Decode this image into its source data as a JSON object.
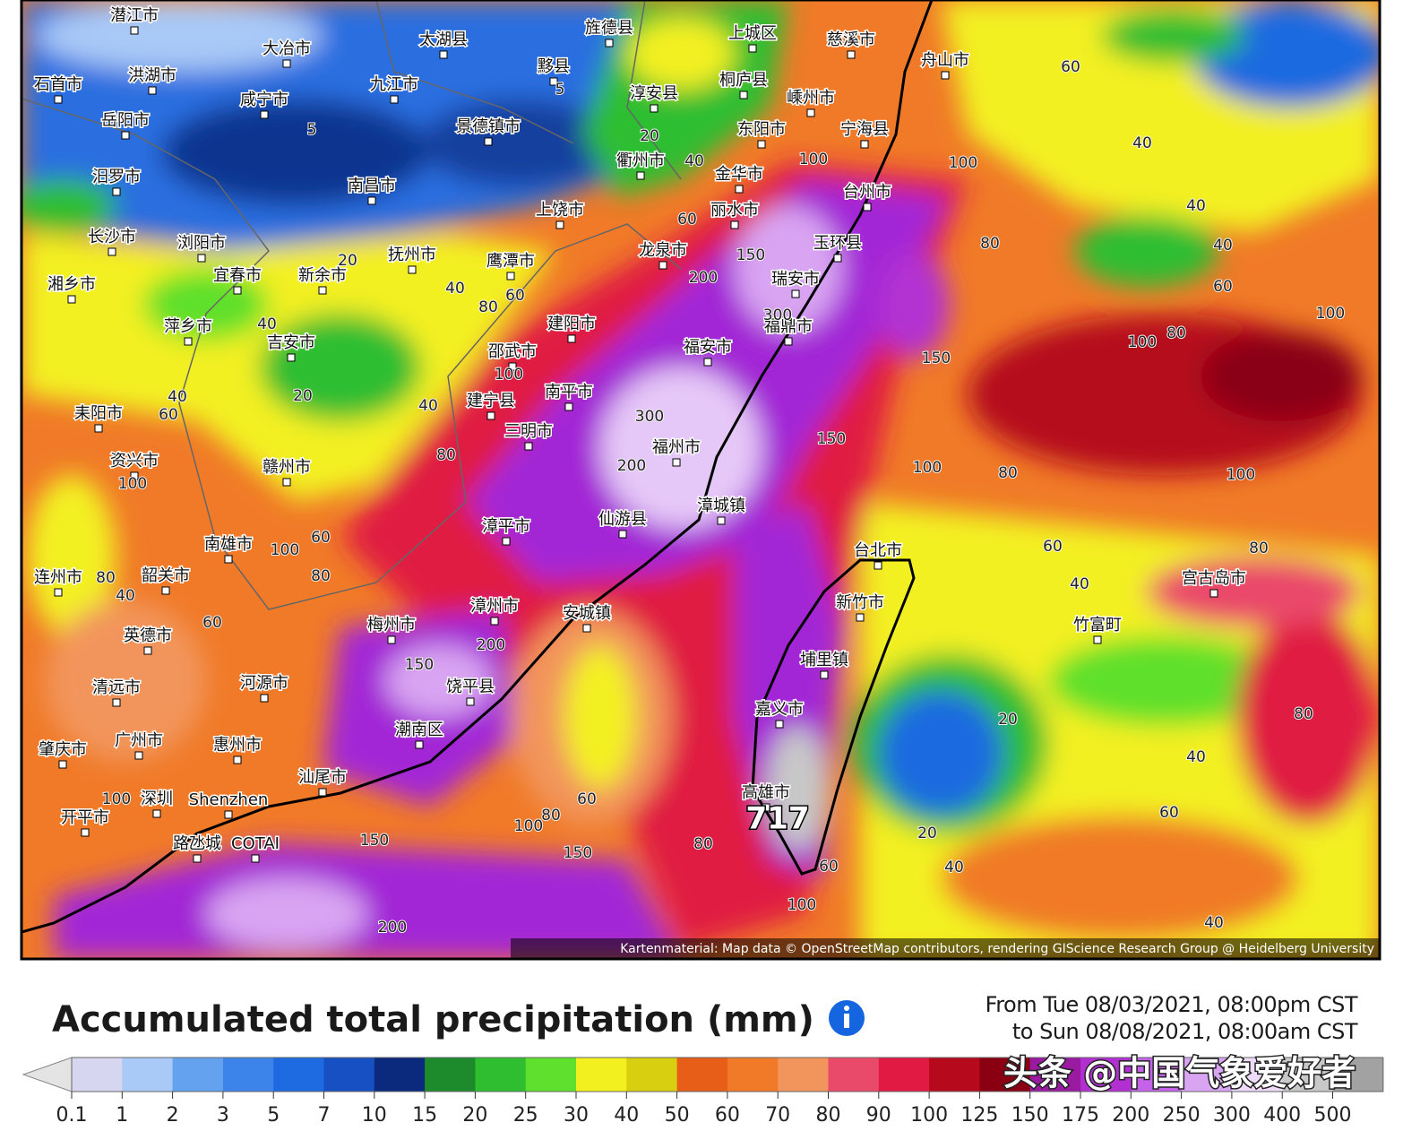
{
  "map": {
    "attribution": "Kartenmaterial: Map data © OpenStreetMap contributors, rendering GIScience Research Group @ Heidelberg University",
    "max_label": "717",
    "places": [
      "潜江市",
      "太湖县",
      "旌德县",
      "上城区",
      "慈溪市",
      "舟山市",
      "洪湖市",
      "大冶市",
      "黟县",
      "九江市",
      "桐庐县",
      "石首市",
      "咸宁市",
      "淳安县",
      "嵊州市",
      "岳阳市",
      "景德镇市",
      "东阳市",
      "宁海县",
      "衢州市",
      "金华市",
      "汨罗市",
      "南昌市",
      "台州市",
      "丽水市",
      "上饶市",
      "长沙市",
      "浏阳市",
      "玉环县",
      "龙泉市",
      "抚州市",
      "鹰潭市",
      "宜春市",
      "新余市",
      "瑞安市",
      "湘乡市",
      "建阳市",
      "萍乡市",
      "福鼎市",
      "吉安市",
      "邵武市",
      "福安市",
      "南平市",
      "建宁县",
      "耒阳市",
      "三明市",
      "福州市",
      "资兴市",
      "赣州市",
      "漳平市",
      "仙游县",
      "漳城镇",
      "南雄市",
      "台北市",
      "连州市",
      "韶关市",
      "新竹市",
      "漳州市",
      "宫古岛市",
      "安城镇",
      "梅州市",
      "竹富町",
      "英德市",
      "埔里镇",
      "河源市",
      "饶平县",
      "清远市",
      "嘉义市",
      "潮南区",
      "广州市",
      "惠州市",
      "肇庆市",
      "汕尾市",
      "高雄市",
      "深圳",
      "Shenzhen",
      "开平市",
      "路氹城",
      "COTAI"
    ],
    "contour_labels": [
      "60",
      "40",
      "100",
      "40",
      "80",
      "40",
      "60",
      "100",
      "100",
      "80",
      "150",
      "300",
      "200",
      "150",
      "100",
      "80",
      "100",
      "60",
      "80",
      "40",
      "20",
      "80",
      "40",
      "60",
      "20",
      "40",
      "40",
      "60",
      "100",
      "80",
      "60",
      "80",
      "100",
      "150",
      "150",
      "200",
      "150",
      "200",
      "100",
      "80",
      "60",
      "60",
      "40",
      "80",
      "100",
      "20",
      "40",
      "60",
      "40",
      "40",
      "80",
      "100",
      "80",
      "60",
      "40",
      "20",
      "60",
      "40",
      "100",
      "20",
      "5",
      "5",
      "200",
      "300",
      "150",
      "100"
    ]
  },
  "legend": {
    "title": "Accumulated total precipitation (mm)",
    "period": [
      "From Tue 08/03/2021, 08:00pm CST",
      "to Sun 08/08/2021, 08:00am CST"
    ],
    "ticks": [
      0.1,
      1,
      2,
      3,
      5,
      7,
      10,
      15,
      20,
      25,
      30,
      40,
      50,
      60,
      70,
      80,
      90,
      100,
      125,
      150,
      175,
      200,
      250,
      300,
      400,
      500
    ],
    "colors": [
      "#d6d6f0",
      "#a9c9f7",
      "#64a2f0",
      "#3d84ea",
      "#1e6ae0",
      "#1650c2",
      "#0b2a7e",
      "#1d8a2c",
      "#2ebe30",
      "#5fe02c",
      "#f3f020",
      "#d8cf10",
      "#e65e18",
      "#f07a28",
      "#f2955c",
      "#ea4a6a",
      "#e01a42",
      "#b60a1c",
      "#8a0012",
      "#9a1aa2",
      "#b230d2",
      "#c462e9",
      "#d9a4f2",
      "#eedaf9",
      "#c8c8c8",
      "#a2a2a2"
    ]
  },
  "watermark": "头条 @中国气象爱好者"
}
